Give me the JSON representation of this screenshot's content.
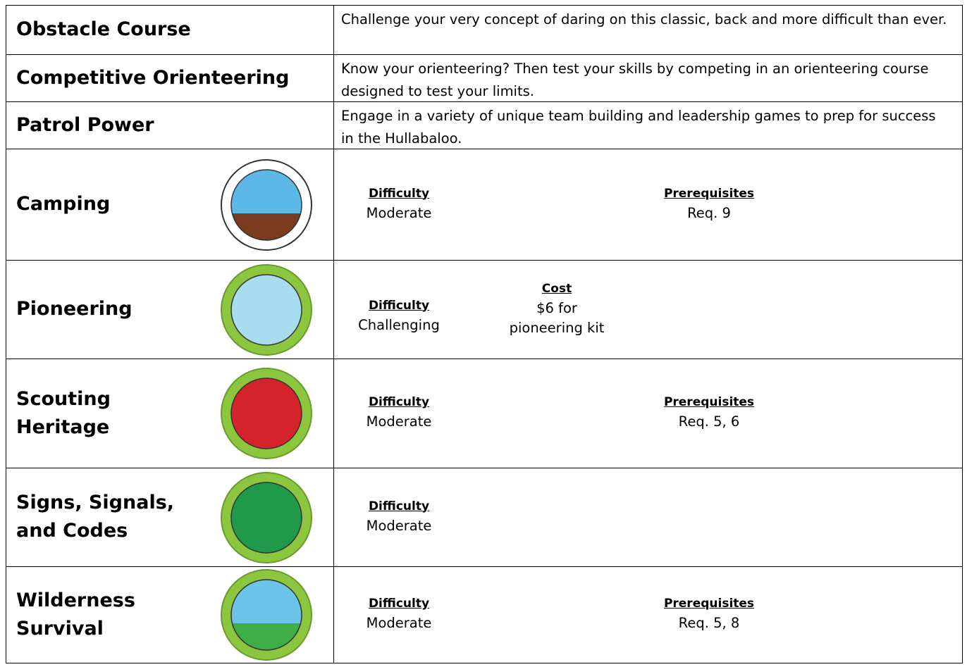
{
  "rows": [
    {
      "title": "Obstacle Course",
      "description": "Challenge your very concept of daring on this classic, back and more difficult than ever."
    },
    {
      "title": "Competitive Orienteering",
      "description": "Know your orienteering?  Then test your skills by competing in an orienteering course designed to test your limits."
    },
    {
      "title": "Patrol Power",
      "description": "Engage in a variety of unique team building and leadership games to prep for success in the Hullabaloo."
    },
    {
      "title": "Camping",
      "difficulty": {
        "label": "Difficulty",
        "value": "Moderate"
      },
      "prerequisites": {
        "label": "Prerequisites",
        "value": "Req. 9"
      }
    },
    {
      "title": "Pioneering",
      "difficulty": {
        "label": "Difficulty",
        "value": "Challenging"
      },
      "cost": {
        "label": "Cost",
        "value": "$6 for pioneering kit"
      }
    },
    {
      "title": "Scouting Heritage",
      "difficulty": {
        "label": "Difficulty",
        "value": "Moderate"
      },
      "prerequisites": {
        "label": "Prerequisites",
        "value": "Req. 5, 6"
      }
    },
    {
      "title": "Signs, Signals, and Codes",
      "difficulty": {
        "label": "Difficulty",
        "value": "Moderate"
      }
    },
    {
      "title": "Wilderness Survival",
      "difficulty": {
        "label": "Difficulty",
        "value": "Moderate"
      },
      "prerequisites": {
        "label": "Prerequisites",
        "value": "Req. 5, 8"
      }
    }
  ]
}
